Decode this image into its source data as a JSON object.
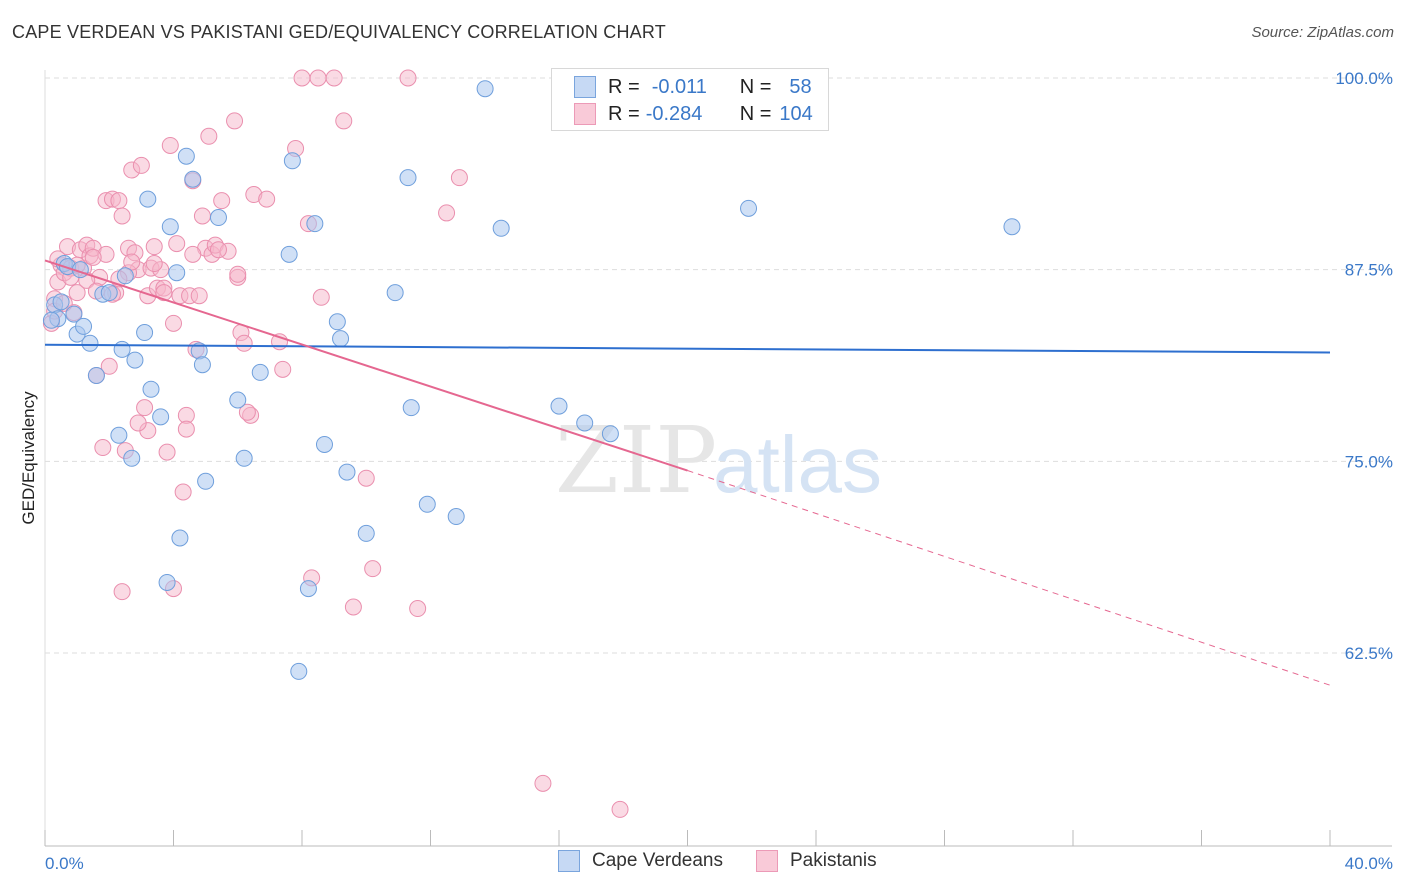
{
  "title": "CAPE VERDEAN VS PAKISTANI GED/EQUIVALENCY CORRELATION CHART",
  "source": "Source: ZipAtlas.com",
  "legend": {
    "rows": [
      {
        "r_label": "R =",
        "r_value": "-0.011",
        "n_label": "N =",
        "n_value": "58"
      },
      {
        "r_label": "R =",
        "r_value": "-0.284",
        "n_label": "N =",
        "n_value": "104"
      }
    ]
  },
  "bottom_legend": [
    "Cape Verdeans",
    "Pakistanis"
  ],
  "colors": {
    "blue_fill": "#a9c6ef",
    "blue_stroke": "#6f9fdc",
    "blue_line": "#2e6fcf",
    "pink_fill": "#f6b5c9",
    "pink_stroke": "#ea8fae",
    "pink_line": "#e56790",
    "axis_label": "#3a78c8",
    "grid": "#dddddd"
  },
  "chart_data": {
    "type": "scatter",
    "title": "CAPE VERDEAN VS PAKISTANI GED/EQUIVALENCY CORRELATION CHART",
    "xlabel": "",
    "ylabel": "GED/Equivalency",
    "xlim": [
      0,
      40
    ],
    "ylim": [
      50.5,
      102
    ],
    "x_tick_labels": [
      "0.0%",
      "40.0%"
    ],
    "y_ticks": [
      62.5,
      75.0,
      87.5,
      100.0
    ],
    "y_tick_labels": [
      "62.5%",
      "75.0%",
      "87.5%",
      "100.0%"
    ],
    "grid": true,
    "watermark": "ZIPatlas",
    "series": [
      {
        "name": "Cape Verdeans",
        "r": -0.011,
        "n": 58,
        "trend": {
          "x0": 0,
          "y0": 82.6,
          "x1": 40,
          "y1": 82.1
        },
        "points": [
          [
            0.3,
            85.2
          ],
          [
            0.4,
            84.3
          ],
          [
            0.2,
            84.2
          ],
          [
            0.5,
            85.4
          ],
          [
            0.6,
            87.9
          ],
          [
            0.7,
            87.7
          ],
          [
            0.9,
            84.6
          ],
          [
            1.0,
            83.3
          ],
          [
            1.2,
            83.8
          ],
          [
            1.4,
            82.7
          ],
          [
            1.6,
            80.6
          ],
          [
            1.8,
            85.9
          ],
          [
            2.0,
            86.0
          ],
          [
            2.3,
            76.7
          ],
          [
            2.4,
            82.3
          ],
          [
            2.5,
            87.1
          ],
          [
            2.7,
            75.2
          ],
          [
            2.8,
            81.6
          ],
          [
            3.1,
            83.4
          ],
          [
            3.2,
            92.1
          ],
          [
            3.3,
            79.7
          ],
          [
            3.6,
            77.9
          ],
          [
            3.8,
            67.1
          ],
          [
            3.9,
            90.3
          ],
          [
            4.1,
            87.3
          ],
          [
            4.2,
            70.0
          ],
          [
            4.4,
            94.9
          ],
          [
            4.6,
            93.4
          ],
          [
            4.8,
            82.2
          ],
          [
            4.9,
            81.3
          ],
          [
            5.0,
            73.7
          ],
          [
            5.4,
            90.9
          ],
          [
            6.0,
            79.0
          ],
          [
            6.2,
            75.2
          ],
          [
            6.7,
            80.8
          ],
          [
            7.6,
            88.5
          ],
          [
            7.7,
            94.6
          ],
          [
            7.9,
            61.3
          ],
          [
            8.2,
            66.7
          ],
          [
            8.4,
            90.5
          ],
          [
            8.7,
            76.1
          ],
          [
            9.1,
            84.1
          ],
          [
            9.2,
            83.0
          ],
          [
            9.4,
            74.3
          ],
          [
            10.0,
            70.3
          ],
          [
            10.9,
            86.0
          ],
          [
            11.3,
            93.5
          ],
          [
            11.4,
            78.5
          ],
          [
            11.9,
            72.2
          ],
          [
            12.8,
            71.4
          ],
          [
            13.7,
            99.3
          ],
          [
            14.2,
            90.2
          ],
          [
            16.0,
            78.6
          ],
          [
            16.8,
            77.5
          ],
          [
            17.6,
            76.8
          ],
          [
            21.9,
            91.5
          ],
          [
            30.1,
            90.3
          ],
          [
            1.1,
            87.5
          ]
        ]
      },
      {
        "name": "Pakistanis",
        "r": -0.284,
        "n": 104,
        "trend": {
          "x0": 0,
          "y0": 88.1,
          "x1": 20,
          "y1": 74.4,
          "dash_to_x": 40,
          "dash_to_y": 60.4
        },
        "points": [
          [
            0.2,
            84.0
          ],
          [
            0.3,
            85.6
          ],
          [
            0.4,
            86.7
          ],
          [
            0.5,
            87.8
          ],
          [
            0.6,
            87.3
          ],
          [
            0.7,
            89.0
          ],
          [
            0.8,
            87.6
          ],
          [
            0.9,
            84.7
          ],
          [
            1.0,
            86.0
          ],
          [
            1.1,
            88.8
          ],
          [
            1.2,
            87.6
          ],
          [
            1.3,
            89.1
          ],
          [
            1.4,
            88.4
          ],
          [
            1.5,
            88.9
          ],
          [
            1.6,
            80.6
          ],
          [
            1.7,
            87.0
          ],
          [
            1.8,
            75.9
          ],
          [
            1.9,
            92.0
          ],
          [
            2.0,
            81.2
          ],
          [
            2.1,
            92.1
          ],
          [
            2.2,
            86.0
          ],
          [
            2.3,
            92.0
          ],
          [
            2.4,
            91.0
          ],
          [
            2.5,
            75.7
          ],
          [
            2.6,
            88.9
          ],
          [
            2.7,
            94.0
          ],
          [
            2.8,
            88.6
          ],
          [
            2.9,
            87.5
          ],
          [
            3.0,
            94.3
          ],
          [
            3.1,
            78.5
          ],
          [
            3.2,
            85.8
          ],
          [
            3.3,
            87.6
          ],
          [
            3.4,
            89.0
          ],
          [
            3.5,
            86.3
          ],
          [
            3.6,
            87.5
          ],
          [
            3.7,
            86.3
          ],
          [
            3.8,
            75.6
          ],
          [
            3.9,
            95.6
          ],
          [
            4.0,
            84.0
          ],
          [
            4.1,
            89.2
          ],
          [
            4.2,
            85.8
          ],
          [
            4.3,
            73.0
          ],
          [
            4.4,
            78.0
          ],
          [
            4.5,
            85.8
          ],
          [
            4.6,
            93.3
          ],
          [
            4.7,
            82.3
          ],
          [
            4.8,
            85.8
          ],
          [
            4.9,
            91.0
          ],
          [
            5.0,
            88.9
          ],
          [
            5.1,
            96.2
          ],
          [
            5.2,
            88.5
          ],
          [
            5.3,
            89.1
          ],
          [
            5.5,
            92.0
          ],
          [
            5.7,
            88.7
          ],
          [
            5.9,
            97.2
          ],
          [
            6.0,
            87.0
          ],
          [
            6.1,
            83.4
          ],
          [
            6.2,
            82.7
          ],
          [
            6.4,
            78.0
          ],
          [
            6.5,
            92.4
          ],
          [
            6.9,
            92.1
          ],
          [
            7.3,
            82.8
          ],
          [
            7.4,
            81.0
          ],
          [
            7.8,
            95.4
          ],
          [
            8.0,
            100.0
          ],
          [
            8.2,
            90.5
          ],
          [
            8.3,
            67.4
          ],
          [
            8.5,
            100.0
          ],
          [
            8.6,
            85.7
          ],
          [
            9.0,
            100.0
          ],
          [
            9.3,
            97.2
          ],
          [
            9.6,
            65.5
          ],
          [
            10.0,
            73.9
          ],
          [
            10.2,
            68.0
          ],
          [
            11.3,
            100.0
          ],
          [
            11.6,
            65.4
          ],
          [
            12.5,
            91.2
          ],
          [
            12.9,
            93.5
          ],
          [
            15.5,
            54.0
          ],
          [
            17.9,
            52.3
          ],
          [
            2.4,
            66.5
          ],
          [
            4.0,
            66.7
          ],
          [
            3.2,
            77.0
          ],
          [
            2.9,
            77.5
          ],
          [
            6.3,
            78.2
          ],
          [
            4.4,
            77.1
          ],
          [
            1.3,
            86.8
          ],
          [
            0.4,
            88.2
          ],
          [
            0.8,
            87.0
          ],
          [
            1.6,
            86.1
          ],
          [
            2.1,
            85.9
          ],
          [
            2.6,
            87.3
          ],
          [
            3.7,
            86.0
          ],
          [
            5.4,
            88.8
          ],
          [
            0.3,
            84.8
          ],
          [
            1.0,
            87.8
          ],
          [
            1.9,
            88.5
          ],
          [
            2.7,
            88.0
          ],
          [
            3.4,
            87.9
          ],
          [
            4.6,
            88.5
          ],
          [
            0.6,
            85.3
          ],
          [
            1.5,
            88.3
          ],
          [
            2.3,
            86.9
          ],
          [
            6.0,
            87.2
          ]
        ]
      }
    ]
  }
}
